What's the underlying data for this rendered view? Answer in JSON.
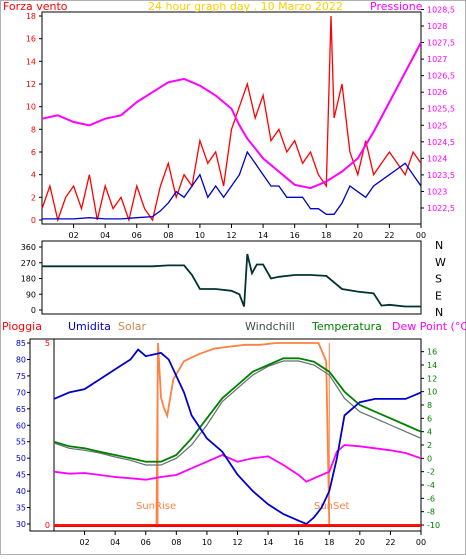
{
  "chart_data": [
    {
      "type": "line",
      "title": "24 hour graph day . 10 Marzo 2022",
      "ylabel_left": "Forza vento",
      "ylabel_right": "Pressione",
      "xlim": [
        0,
        24
      ],
      "x_ticks": [
        "02",
        "04",
        "06",
        "08",
        "10",
        "12",
        "14",
        "16",
        "18",
        "20",
        "22",
        "00"
      ],
      "ylim_left": [
        0,
        18
      ],
      "y_ticks_left": [
        "0",
        "2",
        "4",
        "6",
        "8",
        "10",
        "12",
        "14",
        "16",
        "18"
      ],
      "ylim_right": [
        1022.5,
        1028
      ],
      "y_ticks_right": [
        "1022,5",
        "1023",
        "1023,5",
        "1024",
        "1024,5",
        "1025",
        "1025,5",
        "1026",
        "1026,5",
        "1027",
        "1027,5",
        "1028",
        "1028,5"
      ],
      "colors": {
        "gust": "#ff0000",
        "wind": "#0000cc",
        "pressure": "#ff00ff"
      },
      "series": [
        {
          "key": "gust",
          "axis": "left",
          "x": [
            0,
            0.5,
            1,
            1.5,
            2,
            2.5,
            3,
            3.5,
            4,
            4.5,
            5,
            5.5,
            6,
            6.5,
            7,
            7.5,
            8,
            8.5,
            9,
            9.5,
            10,
            10.5,
            11,
            11.5,
            12,
            12.5,
            13,
            13.5,
            14,
            14.5,
            15,
            15.5,
            16,
            16.5,
            17,
            17.5,
            18,
            18.3,
            18.5,
            19,
            19.5,
            20,
            20.5,
            21,
            21.5,
            22,
            22.5,
            23,
            23.5,
            24
          ],
          "y": [
            1,
            3,
            0,
            2,
            3,
            1,
            4,
            0,
            3,
            1,
            2,
            0,
            3,
            1,
            0,
            3,
            5,
            2,
            4,
            3,
            7,
            5,
            6,
            3,
            8,
            10,
            12,
            9,
            11,
            7,
            8,
            6,
            7,
            5,
            6,
            4,
            3,
            18,
            9,
            12,
            6,
            4,
            7,
            4,
            5,
            6,
            5,
            4,
            6,
            5
          ]
        },
        {
          "key": "wind",
          "axis": "left",
          "x": [
            0,
            1,
            2,
            3,
            4,
            5,
            6,
            7,
            7.5,
            8,
            8.5,
            9,
            9.5,
            10,
            10.5,
            11,
            11.5,
            12,
            12.5,
            13,
            13.5,
            14,
            14.5,
            15,
            15.5,
            16,
            16.5,
            17,
            17.5,
            18,
            18.5,
            19,
            19.5,
            20,
            20.5,
            21,
            21.5,
            22,
            22.5,
            23,
            23.5,
            24
          ],
          "y": [
            0.1,
            0.1,
            0.1,
            0.2,
            0.1,
            0.1,
            0.2,
            0.3,
            0.8,
            1.5,
            2.5,
            2,
            3,
            4,
            2,
            3,
            2,
            3,
            4,
            6,
            5,
            4,
            3,
            3,
            2,
            2,
            2,
            1,
            1,
            0.5,
            0.5,
            1.5,
            3,
            2.5,
            2,
            3,
            3.5,
            4,
            4.5,
            5,
            4,
            3
          ]
        },
        {
          "key": "pressure",
          "axis": "right",
          "x": [
            0,
            1,
            2,
            3,
            4,
            5,
            6,
            7,
            8,
            9,
            10,
            11,
            12,
            12.5,
            13,
            14,
            15,
            16,
            17,
            18,
            19,
            20,
            21,
            22,
            23,
            24
          ],
          "y": [
            1025.2,
            1025.3,
            1025.1,
            1025.0,
            1025.2,
            1025.3,
            1025.7,
            1026.0,
            1026.3,
            1026.4,
            1026.2,
            1025.9,
            1025.5,
            1025.0,
            1024.6,
            1024.0,
            1023.6,
            1023.2,
            1023.1,
            1023.3,
            1023.6,
            1024.0,
            1024.8,
            1025.7,
            1026.6,
            1027.5
          ]
        }
      ]
    },
    {
      "type": "line",
      "title": "",
      "xlim": [
        0,
        24
      ],
      "ylim": [
        0,
        360
      ],
      "y_ticks": [
        "0",
        "90",
        "180",
        "270",
        "360"
      ],
      "direction_labels": [
        "N",
        "W",
        "S",
        "E",
        "N"
      ],
      "colors": {
        "direction": "#003333"
      },
      "series": [
        {
          "key": "direction",
          "x": [
            0,
            7,
            8,
            9,
            9.5,
            10,
            11,
            12,
            12.5,
            12.8,
            13,
            13.3,
            13.6,
            14,
            14.5,
            15,
            16,
            17,
            18,
            19,
            20,
            21,
            21.5,
            22,
            23,
            24
          ],
          "y": [
            250,
            250,
            255,
            255,
            200,
            120,
            120,
            110,
            90,
            20,
            320,
            210,
            260,
            260,
            180,
            190,
            200,
            200,
            195,
            120,
            105,
            95,
            25,
            30,
            20,
            20
          ]
        }
      ]
    },
    {
      "type": "line",
      "title": "",
      "legend": [
        "Pioggia",
        "Umidita",
        "Solar",
        "Windchill",
        "Temperatura",
        "Dew Point (°C)"
      ],
      "xlim": [
        0,
        24
      ],
      "x_ticks": [
        "02",
        "04",
        "06",
        "08",
        "10",
        "12",
        "14",
        "16",
        "18",
        "20",
        "22",
        "00"
      ],
      "ylim_left": [
        30,
        85
      ],
      "y_ticks_left": [
        "30",
        "35",
        "40",
        "45",
        "50",
        "55",
        "60",
        "65",
        "70",
        "75",
        "80",
        "85"
      ],
      "ylim_right": [
        -10,
        17
      ],
      "y_ticks_right": [
        "-10",
        "-8",
        "-6",
        "-4",
        "-2",
        "0",
        "2",
        "4",
        "6",
        "8",
        "10",
        "12",
        "14",
        "16"
      ],
      "pioggia_scale_labels": [
        "0",
        "5"
      ],
      "annotations": [
        "SunRise",
        "SunSet"
      ],
      "sunrise_x": 6.8,
      "sunset_x": 18.0,
      "colors": {
        "humidity": "#0000cc",
        "solar": "#ff8040",
        "windchill": "#607070",
        "temperature": "#008000",
        "dewpoint": "#ff00ff",
        "rain": "#ff0000"
      },
      "series": [
        {
          "key": "humidity",
          "axis": "left",
          "x": [
            0,
            1,
            2,
            3,
            4,
            5,
            5.5,
            6,
            7,
            7.5,
            8,
            8.5,
            9,
            10,
            11,
            12,
            13,
            14,
            15,
            16,
            16.5,
            17,
            17.5,
            18,
            18.5,
            19,
            20,
            21,
            22,
            23,
            24
          ],
          "y": [
            68,
            70,
            71,
            74,
            77,
            80,
            83,
            81,
            82,
            80,
            75,
            70,
            63,
            56,
            52,
            45,
            40,
            36,
            33,
            31,
            30,
            32,
            35,
            40,
            50,
            63,
            67,
            68,
            68,
            68,
            70
          ]
        },
        {
          "key": "temperature",
          "axis": "right",
          "x": [
            0,
            1,
            2,
            3,
            4,
            5,
            6,
            7,
            8,
            9,
            10,
            11,
            12,
            13,
            14,
            15,
            16,
            17,
            18,
            19,
            20,
            21,
            22,
            23,
            24
          ],
          "y": [
            2.5,
            1.8,
            1.5,
            1.0,
            0.5,
            0,
            -0.5,
            -0.5,
            0.5,
            3,
            6,
            9,
            11,
            13,
            14,
            15,
            15,
            14.5,
            13,
            10,
            8,
            7,
            6,
            5,
            4
          ]
        },
        {
          "key": "windchill",
          "axis": "right",
          "x": [
            0,
            1,
            2,
            3,
            4,
            5,
            6,
            7,
            8,
            9,
            10,
            11,
            12,
            13,
            14,
            15,
            16,
            17,
            18,
            19,
            20,
            21,
            22,
            23,
            24
          ],
          "y": [
            2.3,
            1.5,
            1.2,
            0.8,
            0.2,
            -0.3,
            -1,
            -1,
            0,
            2,
            5,
            8.5,
            10.5,
            12.5,
            13.8,
            14.6,
            14.6,
            14,
            12.5,
            9,
            7,
            6,
            5,
            4,
            3
          ]
        },
        {
          "key": "dewpoint",
          "axis": "right",
          "x": [
            0,
            1,
            2,
            3,
            4,
            5,
            6,
            7,
            8,
            9,
            10,
            11,
            12,
            13,
            14,
            15,
            16,
            16.5,
            17,
            18,
            18.5,
            19,
            20,
            21,
            22,
            23,
            24
          ],
          "y": [
            -2,
            -2.3,
            -2.2,
            -2.5,
            -2.8,
            -3,
            -3.2,
            -2.8,
            -2.5,
            -1.5,
            -0.5,
            0.5,
            -0.5,
            0,
            0.3,
            -1,
            -2.5,
            -3.5,
            -3,
            -2,
            1,
            2,
            1.8,
            1.5,
            1.2,
            0.8,
            0
          ]
        },
        {
          "key": "solar",
          "axis": "pioggia",
          "x": [
            0,
            6.7,
            6.8,
            7,
            7.2,
            7.4,
            7.8,
            8.5,
            9.5,
            10.5,
            11.5,
            12.5,
            13.5,
            14.5,
            15.5,
            16.5,
            17.3,
            17.8,
            18.0,
            24
          ],
          "y": [
            0,
            0,
            5,
            3.5,
            3.2,
            3.0,
            4.0,
            4.5,
            4.7,
            4.85,
            4.9,
            4.95,
            4.95,
            5,
            5,
            5,
            5,
            4.5,
            0,
            0
          ]
        },
        {
          "key": "rain",
          "axis": "pioggia",
          "x": [
            0,
            24
          ],
          "y": [
            0,
            0
          ]
        }
      ]
    }
  ]
}
